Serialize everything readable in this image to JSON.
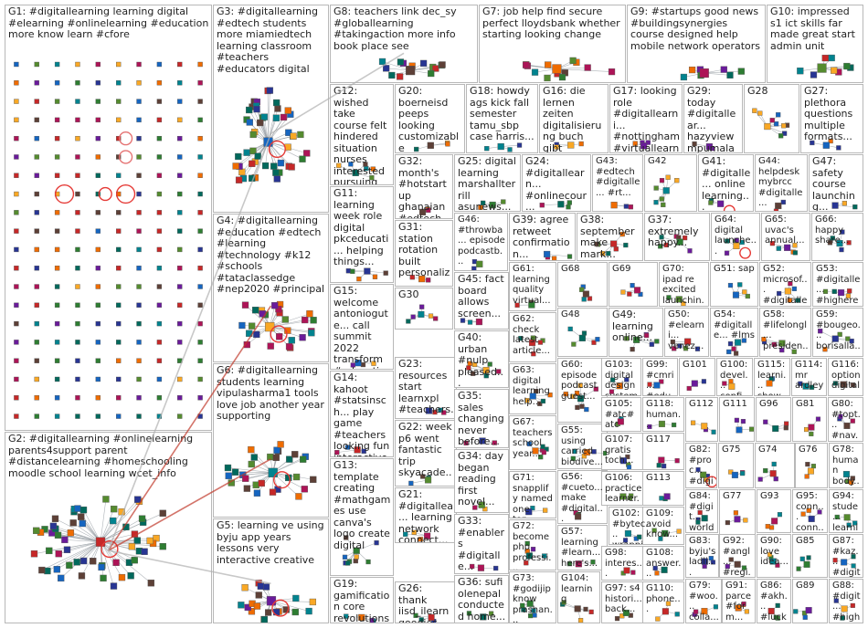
{
  "groups": [
    {
      "id": "G1",
      "label": "G1: #digitallearning learning digital #elearning #onlinelearning #education more know learn #cfore"
    },
    {
      "id": "G2",
      "label": "G2: #digitallearning #onlinelearning parents4support parent #distancelearning #homeschooling moodle school learning wcet_info"
    },
    {
      "id": "G3",
      "label": "G3: #digitallearning #edtech students more miamiedtech learning classroom #teachers #educators digital"
    },
    {
      "id": "G4",
      "label": "G4: #digitallearning #education #edtech #learning #technology #k12 #schools #tataclassedge #nep2020 #principal"
    },
    {
      "id": "G5",
      "label": "G5: learning ve using byju app years lessons very interactive creative"
    },
    {
      "id": "G6",
      "label": "G6: #digitallearning students learning vipulasharma1 tools love job another year supporting"
    },
    {
      "id": "G7",
      "label": "G7: job help find secure perfect lloydsbank whether starting looking change"
    },
    {
      "id": "G8",
      "label": "G8: teachers link dec_sy #globallearning #takingaction more info book place see"
    },
    {
      "id": "G9",
      "label": "G9: #startups good news #buildingsynergies course designed help mobile network operators"
    },
    {
      "id": "G10",
      "label": "G10: impressed s1 ict skills far made great start admin unit"
    },
    {
      "id": "G11",
      "label": "G11: learning week role digital pkceducati... helping things..."
    },
    {
      "id": "G12",
      "label": "G12: wished take course felt hindered situation nurses interested pursuing amrefcd"
    },
    {
      "id": "G13",
      "label": "G13: template creating #mathgames use canva's logo create digital"
    },
    {
      "id": "G14",
      "label": "G14: kahoot #statsinsch... play game #teachers looking fun interactive..."
    },
    {
      "id": "G15",
      "label": "G15: welcome antoniogute... call summit 2022 transform #education..."
    },
    {
      "id": "G16",
      "label": "G16: die lernen zeiten digitalisierung buch gibt nötigen..."
    },
    {
      "id": "G17",
      "label": "G17: looking role #digitallearni... #nottingham #virtuallearni..."
    },
    {
      "id": "G18",
      "label": "G18: howdy ags kick fall semester tamu_sbp case harris..."
    },
    {
      "id": "G19",
      "label": "G19: gamification core revolutions vineet raj..."
    },
    {
      "id": "G20",
      "label": "G20: boerneisd peeps looking customizable professional..."
    },
    {
      "id": "G21",
      "label": "G21: #digitallea... learning network connect..."
    },
    {
      "id": "G22",
      "label": "G22: week p6 went fantastic trip skyacade..."
    },
    {
      "id": "G23",
      "label": "G23: resources start learnxpl #teachers..."
    },
    {
      "id": "G24",
      "label": "G24: #digitallearn... #onlinecour... #training..."
    },
    {
      "id": "G25",
      "label": "G25: digital learning marshallterrill asunews..."
    },
    {
      "id": "G26",
      "label": "G26: thank iisd_ilearn goodies always keeping..."
    },
    {
      "id": "G27",
      "label": "G27: plethora questions multiple formats..."
    },
    {
      "id": "G28",
      "label": "G28"
    },
    {
      "id": "G29",
      "label": "G29: today #digitallear... hazyview mpumalan... celebratin..."
    },
    {
      "id": "G30",
      "label": "G30"
    },
    {
      "id": "G31",
      "label": "G31: station rotation built personaliz..."
    },
    {
      "id": "G32",
      "label": "G32: month's #hotstartup ghanaian #edtech..."
    },
    {
      "id": "G33",
      "label": "G33: #enablers #digitalle... #collabor..."
    },
    {
      "id": "G34",
      "label": "G34: day began reading first novel..."
    },
    {
      "id": "G35",
      "label": "G35: sales changing never before..."
    },
    {
      "id": "G36",
      "label": "G36: sufi olenepal conducted home..."
    },
    {
      "id": "G37",
      "label": "G37: extremely happy..."
    },
    {
      "id": "G38",
      "label": "G38: september make mark..."
    },
    {
      "id": "G39",
      "label": "G39: agree retweet confirmation..."
    },
    {
      "id": "G40",
      "label": "G40: urban #nulp pleased..."
    },
    {
      "id": "G41",
      "label": "G41: #digitalle... online learning..."
    },
    {
      "id": "G42",
      "label": "G42"
    },
    {
      "id": "G43",
      "label": "G43: #edtech #digitalle... #rt..."
    },
    {
      "id": "G44",
      "label": "G44: helpdesk mybrcc #digitalle..."
    },
    {
      "id": "G45",
      "label": "G45: fact board allows screen..."
    },
    {
      "id": "G46",
      "label": "G46: #throwba... episode podcastb..."
    },
    {
      "id": "G47",
      "label": "G47: safety course launching..."
    },
    {
      "id": "G48",
      "label": "G48"
    },
    {
      "id": "G49",
      "label": "G49: learning online..."
    },
    {
      "id": "G50",
      "label": "G50: #elearni... venez..."
    },
    {
      "id": "G51",
      "label": "G51: sap"
    },
    {
      "id": "G52",
      "label": "G52: microsof... #digitalle..."
    },
    {
      "id": "G53",
      "label": "G53: #digitalle... #highere..."
    },
    {
      "id": "G54",
      "label": "G54: #digitalle... #lms"
    },
    {
      "id": "G55",
      "label": "G55: using carried biodive..."
    },
    {
      "id": "G56",
      "label": "G56: #cueto... make #digital..."
    },
    {
      "id": "G57",
      "label": "G57: learning #learn... here's..."
    },
    {
      "id": "G58",
      "label": "G58: #lifelongl... presiden..."
    },
    {
      "id": "G59",
      "label": "G59: #bougeo... borisalla..."
    },
    {
      "id": "G60",
      "label": "G60: episode podcast guest..."
    },
    {
      "id": "G61",
      "label": "G61: learning quality virtual..."
    },
    {
      "id": "G62",
      "label": "G62: check latest article..."
    },
    {
      "id": "G63",
      "label": "G63: digital learning help..."
    },
    {
      "id": "G64",
      "label": "G64: digital launche..."
    },
    {
      "id": "G65",
      "label": "G65: uvac's annual..."
    },
    {
      "id": "G66",
      "label": "G66: happy share..."
    },
    {
      "id": "G67",
      "label": "G67: teachers school year..."
    },
    {
      "id": "G68",
      "label": "G68"
    },
    {
      "id": "G69",
      "label": "G69"
    },
    {
      "id": "G70",
      "label": "G70: ipad re excited launchin..."
    },
    {
      "id": "G71",
      "label": "G71: snapplify named one top..."
    },
    {
      "id": "G72",
      "label": "G72: become php professi..."
    },
    {
      "id": "G73",
      "label": "G73: #godijip know prashan..."
    },
    {
      "id": "G74",
      "label": "G74"
    },
    {
      "id": "G75",
      "label": "G75"
    },
    {
      "id": "G76",
      "label": "G76"
    },
    {
      "id": "G77",
      "label": "G77"
    },
    {
      "id": "G78",
      "label": "G78: human body..."
    },
    {
      "id": "G79",
      "label": "G79: #woo... colla..."
    },
    {
      "id": "G80",
      "label": "G80: #topt... #nav..."
    },
    {
      "id": "G81",
      "label": "G81"
    },
    {
      "id": "G82",
      "label": "G82: #proc... #digit..."
    },
    {
      "id": "G83",
      "label": "G83: byju's ladli..."
    },
    {
      "id": "G84",
      "label": "G84: #digit... world..."
    },
    {
      "id": "G85",
      "label": "G85"
    },
    {
      "id": "G86",
      "label": "G86: #akh... #luck..."
    },
    {
      "id": "G87",
      "label": "G87: #kaz... #digit"
    },
    {
      "id": "G88",
      "label": "G88: #digit... #high..."
    },
    {
      "id": "G89",
      "label": "G89"
    },
    {
      "id": "G90",
      "label": "G90: love idea..."
    },
    {
      "id": "G91",
      "label": "G91: parce #form..."
    },
    {
      "id": "G92",
      "label": "G92: #angl... #regi..."
    },
    {
      "id": "G93",
      "label": "G93"
    },
    {
      "id": "G94",
      "label": "G94: stude... learni..."
    },
    {
      "id": "G95",
      "label": "G95: conn... conn..."
    },
    {
      "id": "G96",
      "label": "G96"
    },
    {
      "id": "G97",
      "label": "G97: s4 histori... back..."
    },
    {
      "id": "G98",
      "label": "G98: interes..."
    },
    {
      "id": "G99",
      "label": "G99: #cmri... #educ..."
    },
    {
      "id": "G100",
      "label": "G100: devel... confi..."
    },
    {
      "id": "G101",
      "label": "G101"
    },
    {
      "id": "G102",
      "label": "G102: #bytec... wrappi..."
    },
    {
      "id": "G103",
      "label": "G103: digital design system..."
    },
    {
      "id": "G104",
      "label": "G104: learning"
    },
    {
      "id": "G105",
      "label": "G105: #atc#atc #atchu..."
    },
    {
      "id": "G106",
      "label": "G106: practice learner..."
    },
    {
      "id": "G107",
      "label": "G107: gratis toch..."
    },
    {
      "id": "G108",
      "label": "G108: answer..."
    },
    {
      "id": "G109",
      "label": "G109: avoid know..."
    },
    {
      "id": "G110",
      "label": "G110: phone..."
    },
    {
      "id": "G111",
      "label": "G111"
    },
    {
      "id": "G112",
      "label": "G112"
    },
    {
      "id": "G113",
      "label": "G113"
    },
    {
      "id": "G114",
      "label": "G114: mr ardley..."
    },
    {
      "id": "G115",
      "label": "G115: learni... show..."
    },
    {
      "id": "G116",
      "label": "G116: option digital..."
    },
    {
      "id": "G117",
      "label": "G117"
    },
    {
      "id": "G118",
      "label": "G118: human..."
    }
  ]
}
